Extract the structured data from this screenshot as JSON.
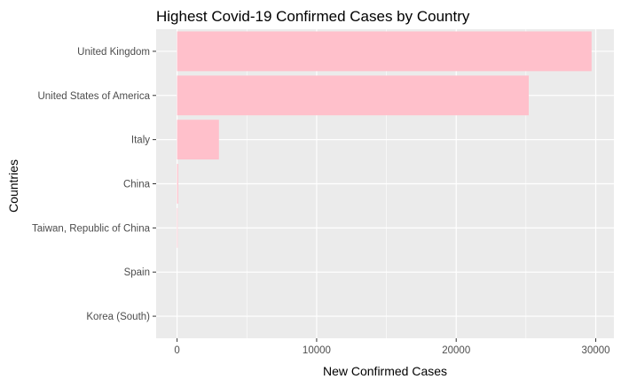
{
  "chart_data": {
    "type": "bar",
    "orientation": "horizontal",
    "title": "Highest Covid-19 Confirmed Cases by Country",
    "xlabel": "New Confirmed Cases",
    "ylabel": "Countries",
    "categories": [
      "United Kingdom",
      "United States of America",
      "Italy",
      "China",
      "Taiwan, Republic of China",
      "Spain",
      "Korea (South)"
    ],
    "values": [
      29700,
      25200,
      3000,
      80,
      40,
      0,
      0
    ],
    "xlim": [
      -1500,
      31300
    ],
    "xticks": [
      0,
      10000,
      20000,
      30000
    ],
    "xtick_labels": [
      "0",
      "10000",
      "20000",
      "30000"
    ],
    "grid": true,
    "colors": {
      "bar": "#ffc0cb",
      "panel": "#ebebeb",
      "grid": "#ffffff",
      "text": "#4d4d4d",
      "title": "#000000"
    }
  }
}
